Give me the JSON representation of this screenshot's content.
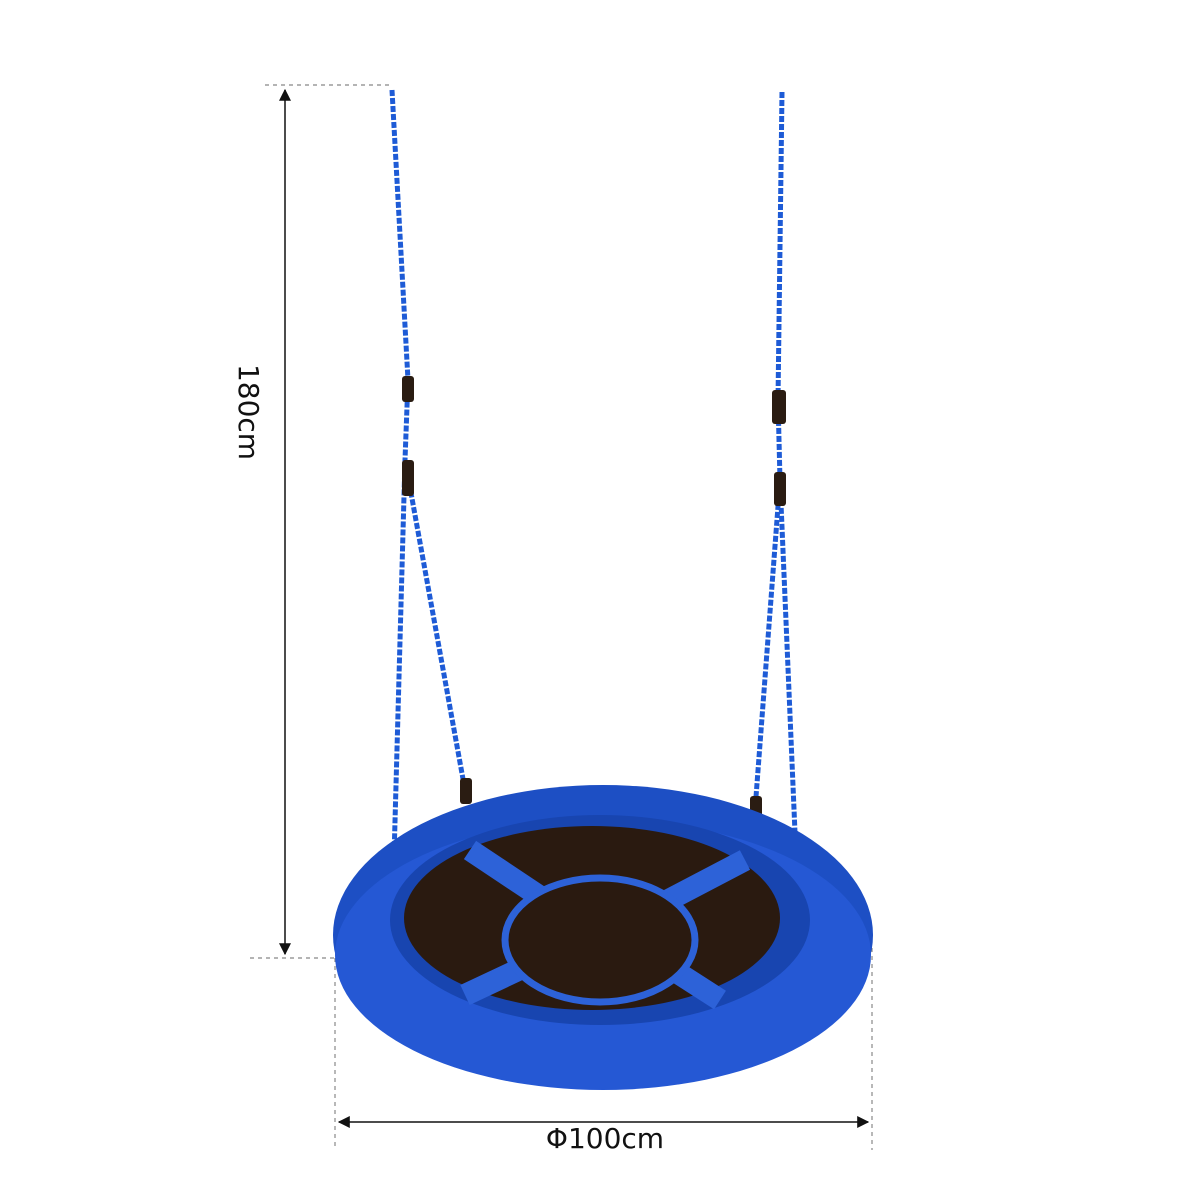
{
  "dimensions": {
    "height": "180cm",
    "diameter": "Φ100cm"
  }
}
